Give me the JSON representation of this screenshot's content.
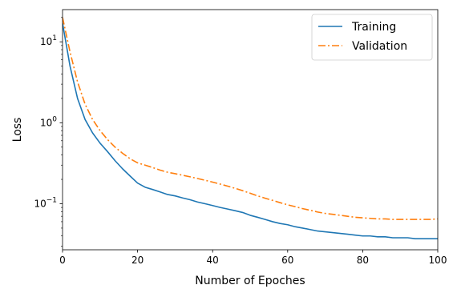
{
  "chart_data": {
    "type": "line",
    "title": "",
    "xlabel": "Number of Epoches",
    "ylabel": "Loss",
    "xlim": [
      0,
      100
    ],
    "ylim": [
      0.027,
      25
    ],
    "yscale": "log",
    "grid": false,
    "legend_position": "top-right",
    "x_ticks": [
      0,
      20,
      40,
      60,
      80,
      100
    ],
    "x_tick_labels": [
      "0",
      "20",
      "40",
      "60",
      "80",
      "100"
    ],
    "y_ticks": [
      0.1,
      1,
      10
    ],
    "y_tick_labels": [
      {
        "base": "10",
        "exp": "−1"
      },
      {
        "base": "10",
        "exp": "0"
      },
      {
        "base": "10",
        "exp": "1"
      }
    ],
    "series": [
      {
        "name": "Training",
        "color": "#1f77b4",
        "style": "solid",
        "x": [
          0,
          2,
          4,
          6,
          8,
          10,
          12,
          14,
          16,
          18,
          20,
          22,
          24,
          26,
          28,
          30,
          32,
          34,
          36,
          38,
          40,
          42,
          44,
          46,
          48,
          50,
          52,
          54,
          56,
          58,
          60,
          62,
          64,
          66,
          68,
          70,
          72,
          74,
          76,
          78,
          80,
          82,
          84,
          86,
          88,
          90,
          92,
          94,
          96,
          98,
          100
        ],
        "y": [
          17,
          5,
          2,
          1.1,
          0.75,
          0.56,
          0.44,
          0.34,
          0.27,
          0.22,
          0.18,
          0.16,
          0.15,
          0.14,
          0.13,
          0.125,
          0.118,
          0.112,
          0.105,
          0.1,
          0.095,
          0.09,
          0.086,
          0.082,
          0.078,
          0.072,
          0.068,
          0.064,
          0.06,
          0.057,
          0.055,
          0.052,
          0.05,
          0.048,
          0.046,
          0.045,
          0.044,
          0.043,
          0.042,
          0.041,
          0.04,
          0.04,
          0.039,
          0.039,
          0.038,
          0.038,
          0.038,
          0.037,
          0.037,
          0.037,
          0.037
        ]
      },
      {
        "name": "Validation",
        "color": "#ff7f0e",
        "style": "dashdot",
        "x": [
          0,
          2,
          4,
          6,
          8,
          10,
          12,
          14,
          16,
          18,
          20,
          22,
          24,
          26,
          28,
          30,
          32,
          34,
          36,
          38,
          40,
          42,
          44,
          46,
          48,
          50,
          52,
          54,
          56,
          58,
          60,
          62,
          64,
          66,
          68,
          70,
          72,
          74,
          76,
          78,
          80,
          82,
          84,
          86,
          88,
          90,
          92,
          94,
          96,
          98,
          100
        ],
        "y": [
          20,
          7.5,
          3.2,
          1.7,
          1.1,
          0.8,
          0.62,
          0.5,
          0.42,
          0.36,
          0.32,
          0.3,
          0.28,
          0.26,
          0.245,
          0.235,
          0.225,
          0.215,
          0.205,
          0.195,
          0.185,
          0.175,
          0.165,
          0.155,
          0.145,
          0.135,
          0.125,
          0.117,
          0.11,
          0.103,
          0.097,
          0.092,
          0.087,
          0.083,
          0.079,
          0.076,
          0.074,
          0.072,
          0.07,
          0.068,
          0.067,
          0.066,
          0.065,
          0.065,
          0.064,
          0.064,
          0.064,
          0.064,
          0.064,
          0.064,
          0.065
        ]
      }
    ]
  }
}
